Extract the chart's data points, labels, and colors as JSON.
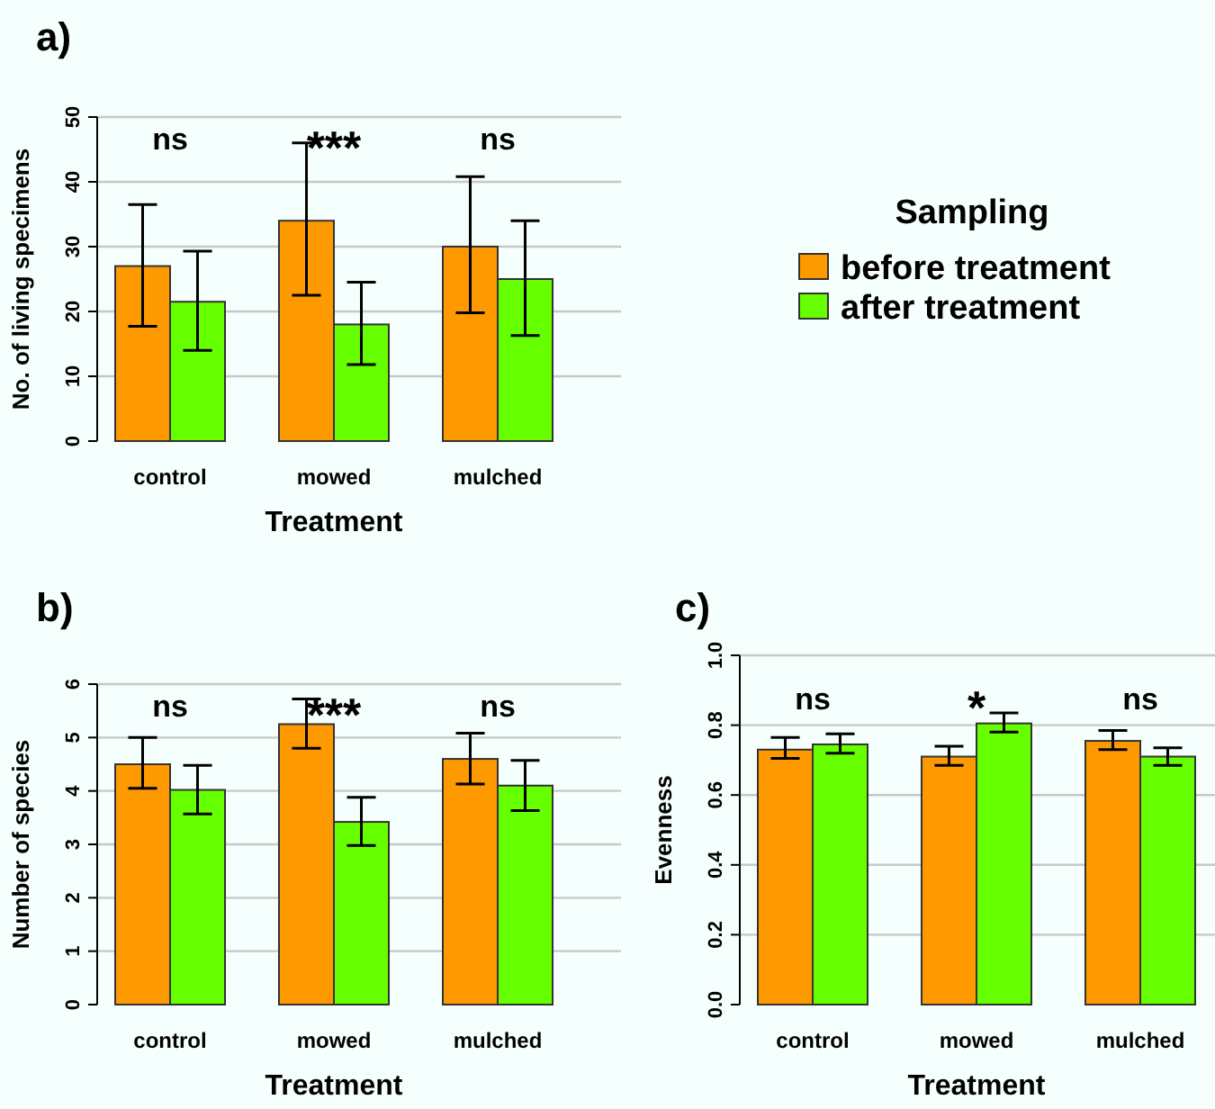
{
  "chart_data": [
    {
      "type": "bar",
      "title": "a)",
      "xlabel": "Treatment",
      "ylabel": "No. of living specimens",
      "categories": [
        "control",
        "mowed",
        "mulched"
      ],
      "ylim": [
        0,
        50
      ],
      "yticks": [
        0,
        10,
        20,
        30,
        40,
        50
      ],
      "grid": "y",
      "legend": "right",
      "legend_title": "Sampling",
      "series": [
        {
          "name": "before treatment",
          "color": "#ff9900",
          "values": [
            27,
            34,
            30
          ],
          "errors": [
            [
              17.7,
              36.5
            ],
            [
              22.5,
              46
            ],
            [
              19.8,
              40.8
            ]
          ]
        },
        {
          "name": "after treatment",
          "color": "#66ff00",
          "values": [
            21.5,
            18,
            25
          ],
          "errors": [
            [
              14,
              29.3
            ],
            [
              11.8,
              24.5
            ],
            [
              16.3,
              34
            ]
          ]
        }
      ],
      "annotations": [
        "ns",
        "***",
        "ns"
      ]
    },
    {
      "type": "bar",
      "title": "b)",
      "xlabel": "Treatment",
      "ylabel": "Number of species",
      "categories": [
        "control",
        "mowed",
        "mulched"
      ],
      "ylim": [
        0,
        6
      ],
      "yticks": [
        0,
        1,
        2,
        3,
        4,
        5,
        6
      ],
      "grid": "y",
      "series": [
        {
          "color": "#ff9900",
          "values": [
            4.5,
            5.25,
            4.6
          ],
          "errors": [
            [
              4.05,
              5.0
            ],
            [
              4.8,
              5.72
            ],
            [
              4.13,
              5.08
            ]
          ]
        },
        {
          "color": "#66ff00",
          "values": [
            4.02,
            3.42,
            4.1
          ],
          "errors": [
            [
              3.57,
              4.48
            ],
            [
              2.98,
              3.88
            ],
            [
              3.63,
              4.57
            ]
          ]
        }
      ],
      "annotations": [
        "ns",
        "***",
        "ns"
      ]
    },
    {
      "type": "bar",
      "title": "c)",
      "xlabel": "Treatment",
      "ylabel": "Evenness",
      "categories": [
        "control",
        "mowed",
        "mulched"
      ],
      "ylim": [
        0,
        1
      ],
      "yticks": [
        {
          "value": 0,
          "label": "0.0"
        },
        {
          "value": 0.2,
          "label": "0.2"
        },
        {
          "value": 0.4,
          "label": "0.4"
        },
        {
          "value": 0.6,
          "label": "0.6"
        },
        {
          "value": 0.8,
          "label": "0.8"
        },
        {
          "value": 1,
          "label": "1.0"
        }
      ],
      "grid": "y",
      "series": [
        {
          "color": "#ff9900",
          "values": [
            0.73,
            0.71,
            0.755
          ],
          "errors": [
            [
              0.705,
              0.765
            ],
            [
              0.685,
              0.74
            ],
            [
              0.73,
              0.785
            ]
          ]
        },
        {
          "color": "#66ff00",
          "values": [
            0.745,
            0.805,
            0.71
          ],
          "errors": [
            [
              0.72,
              0.775
            ],
            [
              0.78,
              0.835
            ],
            [
              0.685,
              0.735
            ]
          ]
        }
      ],
      "annotations": [
        "ns",
        "*",
        "ns"
      ]
    }
  ]
}
